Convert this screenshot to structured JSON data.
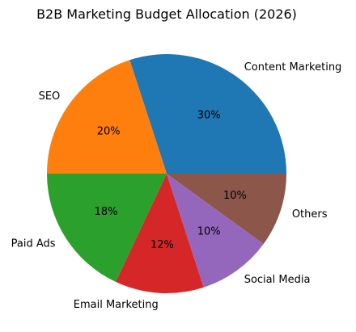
{
  "chart_data": {
    "type": "pie",
    "title": "B2B Marketing Budget Allocation (2026)",
    "start_angle_deg": 0,
    "direction": "counterclockwise",
    "slices": [
      {
        "label": "Content Marketing",
        "value": 30,
        "pct_label": "30%",
        "color": "#1f77b4"
      },
      {
        "label": "SEO",
        "value": 20,
        "pct_label": "20%",
        "color": "#ff7f0e"
      },
      {
        "label": "Paid Ads",
        "value": 18,
        "pct_label": "18%",
        "color": "#2ca02c"
      },
      {
        "label": "Email Marketing",
        "value": 12,
        "pct_label": "12%",
        "color": "#d62728"
      },
      {
        "label": "Social Media",
        "value": 10,
        "pct_label": "10%",
        "color": "#9467bd"
      },
      {
        "label": "Others",
        "value": 10,
        "pct_label": "10%",
        "color": "#8c564b"
      }
    ]
  }
}
